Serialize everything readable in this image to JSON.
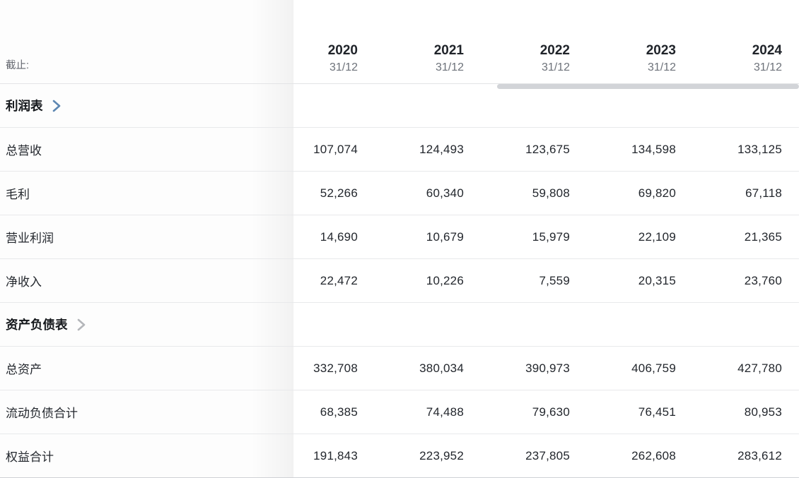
{
  "header": {
    "as_of_label": "截止:",
    "columns": [
      {
        "year": "2020",
        "date": "31/12"
      },
      {
        "year": "2021",
        "date": "31/12"
      },
      {
        "year": "2022",
        "date": "31/12"
      },
      {
        "year": "2023",
        "date": "31/12"
      },
      {
        "year": "2024",
        "date": "31/12"
      }
    ]
  },
  "sections": [
    {
      "title": "利润表",
      "chevron_color": "#5d87b2",
      "rows": [
        {
          "label": "总营收",
          "values": [
            "107,074",
            "124,493",
            "123,675",
            "134,598",
            "133,125"
          ]
        },
        {
          "label": "毛利",
          "values": [
            "52,266",
            "60,340",
            "59,808",
            "69,820",
            "67,118"
          ]
        },
        {
          "label": "营业利润",
          "values": [
            "14,690",
            "10,679",
            "15,979",
            "22,109",
            "21,365"
          ]
        },
        {
          "label": "净收入",
          "values": [
            "22,472",
            "10,226",
            "7,559",
            "20,315",
            "23,760"
          ]
        }
      ]
    },
    {
      "title": "资产负债表",
      "chevron_color": "#b4b6ba",
      "rows": [
        {
          "label": "总资产",
          "values": [
            "332,708",
            "380,034",
            "390,973",
            "406,759",
            "427,780"
          ]
        },
        {
          "label": "流动负债合计",
          "values": [
            "68,385",
            "74,488",
            "79,630",
            "76,451",
            "80,953"
          ]
        },
        {
          "label": "权益合计",
          "values": [
            "191,843",
            "223,952",
            "237,805",
            "262,608",
            "283,612"
          ]
        }
      ]
    }
  ],
  "colors": {
    "row_border": "#e8e9eb",
    "scrollbar_thumb": "#d2d4d8",
    "year_text": "#1f2329",
    "muted_text": "#6d727a",
    "value_text": "#23272d"
  }
}
